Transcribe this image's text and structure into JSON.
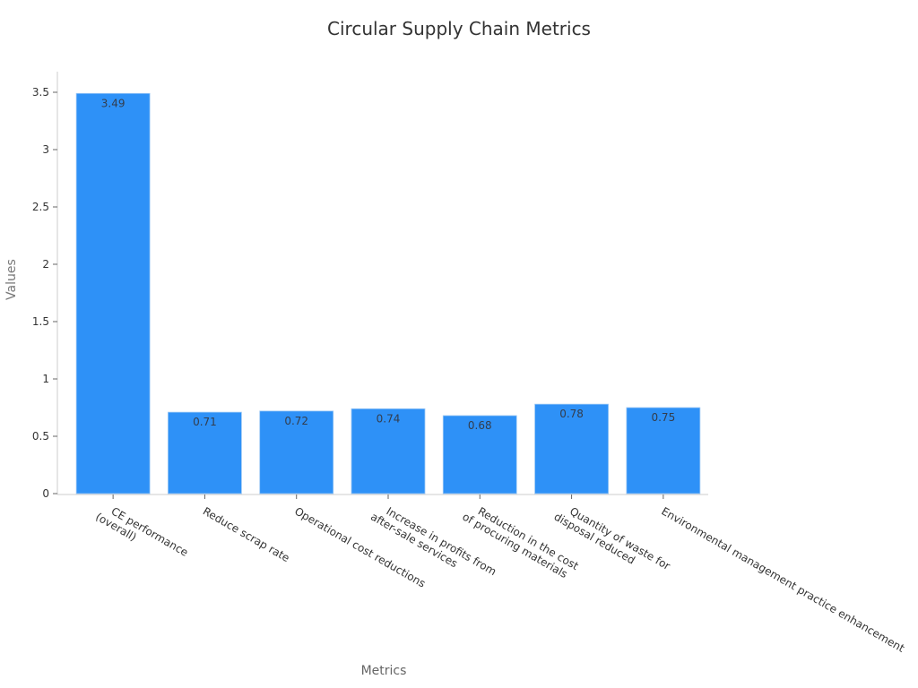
{
  "chart_data": {
    "type": "bar",
    "title": "Circular Supply Chain Metrics",
    "xlabel": "Metrics",
    "ylabel": "Values",
    "categories": [
      "CE performance (overall)",
      "Reduce scrap rate",
      "Operational cost reductions",
      "Increase in profits from after-sale services",
      "Reduction in the cost of procuring materials",
      "Quantity of waste for disposal reduced",
      "Environmental management practice enhancement"
    ],
    "category_lines": [
      [
        "CE performance",
        "(overall)"
      ],
      [
        "Reduce scrap rate"
      ],
      [
        "Operational cost reductions"
      ],
      [
        "Increase in profits from",
        "after-sale services"
      ],
      [
        "Reduction in the cost",
        "of procuring materials"
      ],
      [
        "Quantity of waste for",
        "disposal reduced"
      ],
      [
        "Environmental management practice enhancement"
      ]
    ],
    "values": [
      3.49,
      0.71,
      0.72,
      0.74,
      0.68,
      0.78,
      0.75
    ],
    "value_labels": [
      "3.49",
      "0.71",
      "0.72",
      "0.74",
      "0.68",
      "0.78",
      "0.75"
    ],
    "yticks": [
      0,
      0.5,
      1,
      1.5,
      2,
      2.5,
      3,
      3.5
    ],
    "ytick_labels": [
      "0",
      "0.5",
      "1",
      "1.5",
      "2",
      "2.5",
      "3",
      "3.5"
    ],
    "ylim": [
      0,
      3.67
    ],
    "grid": false,
    "legend": null,
    "bar_color": "#2e91f7"
  }
}
